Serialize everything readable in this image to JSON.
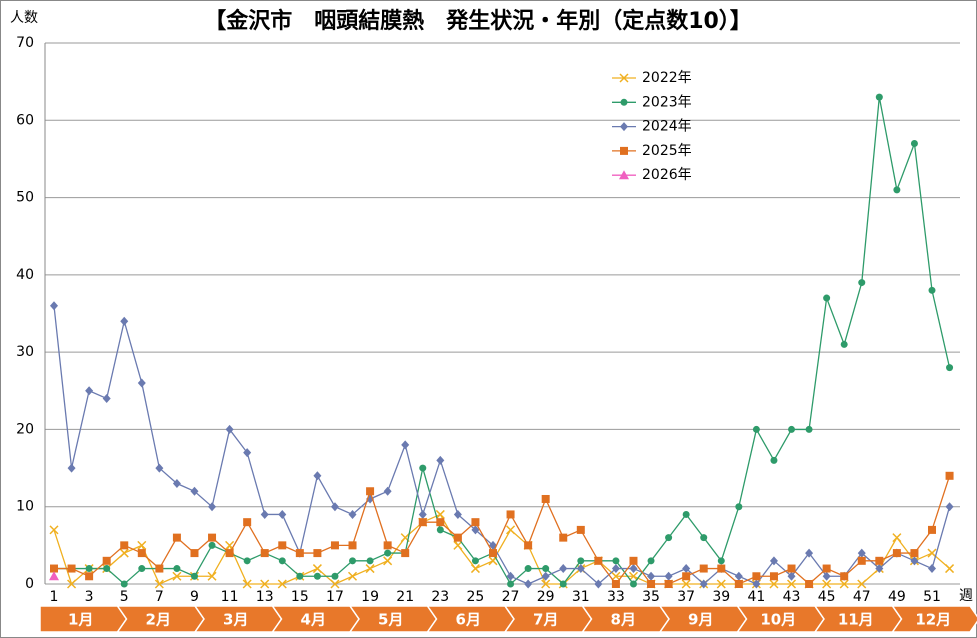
{
  "chart_data": {
    "type": "line",
    "title": "【金沢市　咽頭結膜熱　発生状況・年別（定点数10）】",
    "y_label": "人数",
    "x_label": "週",
    "categories": [
      1,
      null,
      3,
      null,
      5,
      null,
      7,
      null,
      9,
      null,
      11,
      null,
      13,
      null,
      15,
      null,
      17,
      null,
      19,
      null,
      21,
      null,
      23,
      null,
      25,
      null,
      27,
      null,
      29,
      null,
      31,
      null,
      33,
      null,
      35,
      null,
      37,
      null,
      39,
      null,
      41,
      null,
      43,
      null,
      45,
      null,
      47,
      null,
      49,
      null,
      51,
      null
    ],
    "month_bands": [
      "1月",
      "2月",
      "3月",
      "4月",
      "5月",
      "6月",
      "7月",
      "8月",
      "9月",
      "10月",
      "11月",
      "12月"
    ],
    "month_color": "#e8782a",
    "ylim": [
      0,
      70
    ],
    "yticks": [
      0,
      10,
      20,
      30,
      40,
      50,
      60,
      70
    ],
    "grid": true,
    "legend": "top-right",
    "series": [
      {
        "name": "2022年",
        "color": "#f0b020",
        "marker": "x",
        "values": [
          7,
          0,
          2,
          2,
          4,
          5,
          0,
          1,
          1,
          1,
          5,
          0,
          0,
          0,
          1,
          2,
          0,
          1,
          2,
          3,
          6,
          8,
          9,
          5,
          2,
          3,
          7,
          5,
          0,
          0,
          2,
          3,
          1,
          1,
          0,
          0,
          0,
          0,
          0,
          0,
          0,
          0,
          0,
          0,
          0,
          0,
          0,
          2,
          6,
          3,
          4,
          2
        ]
      },
      {
        "name": "2023年",
        "color": "#2e9b6a",
        "marker": "circle",
        "values": [
          2,
          2,
          2,
          2,
          0,
          2,
          2,
          2,
          1,
          5,
          4,
          3,
          4,
          3,
          1,
          1,
          1,
          3,
          3,
          4,
          4,
          15,
          7,
          6,
          3,
          4,
          0,
          2,
          2,
          0,
          3,
          3,
          3,
          0,
          3,
          6,
          9,
          6,
          3,
          10,
          20,
          16,
          20,
          20,
          37,
          31,
          39,
          63,
          51,
          57,
          38,
          28
        ]
      },
      {
        "name": "2024年",
        "color": "#6a7ab0",
        "marker": "diamond",
        "values": [
          36,
          15,
          25,
          24,
          34,
          26,
          15,
          13,
          12,
          10,
          20,
          17,
          9,
          9,
          4,
          14,
          10,
          9,
          11,
          12,
          18,
          9,
          16,
          9,
          7,
          5,
          1,
          0,
          1,
          2,
          2,
          0,
          2,
          2,
          1,
          1,
          2,
          0,
          2,
          1,
          0,
          3,
          1,
          4,
          1,
          1,
          4,
          2,
          4,
          3,
          2,
          10
        ]
      },
      {
        "name": "2025年",
        "color": "#e07020",
        "marker": "square",
        "values": [
          2,
          2,
          1,
          3,
          5,
          4,
          2,
          6,
          4,
          6,
          4,
          8,
          4,
          5,
          4,
          4,
          5,
          5,
          12,
          5,
          4,
          8,
          8,
          6,
          8,
          4,
          9,
          5,
          11,
          6,
          7,
          3,
          0,
          3,
          0,
          0,
          1,
          2,
          2,
          0,
          1,
          1,
          2,
          0,
          2,
          1,
          3,
          3,
          4,
          4,
          7,
          14
        ]
      },
      {
        "name": "2026年",
        "color": "#f060c0",
        "marker": "triangle",
        "values": [
          1,
          null,
          null,
          null,
          null,
          null,
          null,
          null,
          null,
          null,
          null,
          null,
          null,
          null,
          null,
          null,
          null,
          null,
          null,
          null,
          null,
          null,
          null,
          null,
          null,
          null,
          null,
          null,
          null,
          null,
          null,
          null,
          null,
          null,
          null,
          null,
          null,
          null,
          null,
          null,
          null,
          null,
          null,
          null,
          null,
          null,
          null,
          null,
          null,
          null,
          null,
          null
        ]
      }
    ]
  }
}
